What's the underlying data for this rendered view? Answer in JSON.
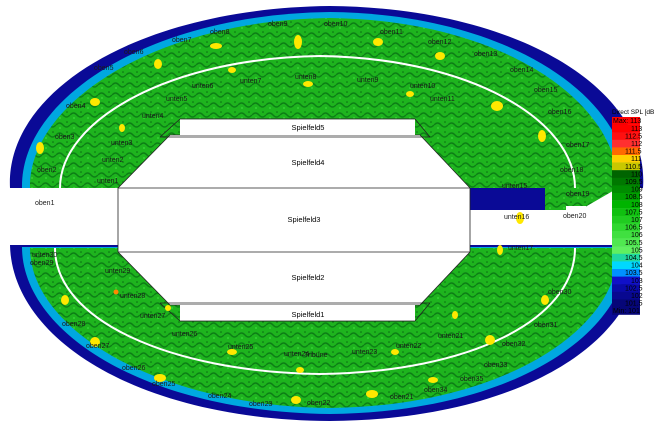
{
  "legend": {
    "title": "Direct SPL [dB",
    "max_label": "Max: 113",
    "min_label": "Min: 101",
    "steps": [
      {
        "label": "113",
        "color": "#ff0000"
      },
      {
        "label": "112.5",
        "color": "#ff1010"
      },
      {
        "label": "112",
        "color": "#ff3030"
      },
      {
        "label": "111.5",
        "color": "#ff6a00"
      },
      {
        "label": "111",
        "color": "#ffd000"
      },
      {
        "label": "110.5",
        "color": "#c8c800"
      },
      {
        "label": "110",
        "color": "#006400"
      },
      {
        "label": "109.5",
        "color": "#007800"
      },
      {
        "label": "109",
        "color": "#008c00"
      },
      {
        "label": "108.5",
        "color": "#00a000"
      },
      {
        "label": "108",
        "color": "#00b400"
      },
      {
        "label": "107.5",
        "color": "#10c010"
      },
      {
        "label": "107",
        "color": "#20cc20"
      },
      {
        "label": "106.5",
        "color": "#30d830"
      },
      {
        "label": "106",
        "color": "#40e040"
      },
      {
        "label": "105.5",
        "color": "#50e850"
      },
      {
        "label": "105",
        "color": "#60f060"
      },
      {
        "label": "104.5",
        "color": "#20d8a0"
      },
      {
        "label": "104",
        "color": "#00d8ff"
      },
      {
        "label": "103.5",
        "color": "#0090ff"
      },
      {
        "label": "103",
        "color": "#1010c8"
      },
      {
        "label": "102.5",
        "color": "#0a0aa8"
      },
      {
        "label": "102",
        "color": "#080890"
      },
      {
        "label": "101.5",
        "color": "#060678"
      }
    ]
  },
  "fields": [
    "Spielfeld5",
    "Spielfeld4",
    "Spielfeld3",
    "Spielfeld2",
    "Spielfeld1"
  ],
  "zones": [
    "oben9",
    "oben10",
    "oben8",
    "oben11",
    "oben7",
    "oben12",
    "oben6",
    "oben13",
    "oben5",
    "oben14",
    "oben4",
    "oben15",
    "oben3",
    "oben16",
    "oben2",
    "oben17",
    "oben1",
    "oben18",
    "oben19",
    "oben20",
    "unten8",
    "unten9",
    "unten7",
    "unten10",
    "unten6",
    "unten11",
    "unten5",
    "unten4",
    "unten3",
    "unten2",
    "unten1",
    "unten15",
    "unten16",
    "unten17",
    "unten30",
    "unten29",
    "unten28",
    "unten27",
    "unten26",
    "unten25",
    "unten24",
    "Tribüne",
    "unten23",
    "unten22",
    "unten21",
    "oben29",
    "oben28",
    "oben27",
    "oben26",
    "oben25",
    "oben24",
    "oben23",
    "oben22",
    "oben21",
    "oben35",
    "oben34",
    "oben33",
    "oben32",
    "oben31",
    "oben30"
  ],
  "colors": {
    "outer_ring": "#0a0a96",
    "mid_ring": "#00a8e0",
    "seating": "#22c822",
    "seating_dark": "#0f8a1a",
    "hotspot": "#ffe800",
    "field": "#ffffff"
  }
}
